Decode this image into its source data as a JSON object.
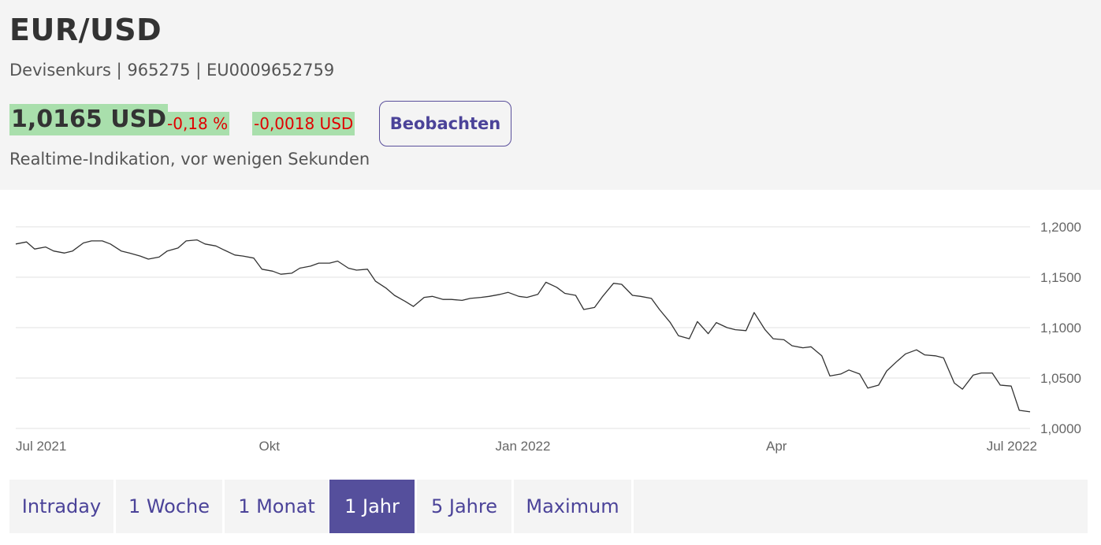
{
  "header": {
    "title": "EUR/USD",
    "subtitle": "Devisenkurs | 965275 | EU0009652759",
    "price": "1,0165 USD",
    "change_pct": "-0,18 %",
    "change_abs": "-0,0018 USD",
    "watch_label": "Beobachten",
    "realtime_text": "Realtime-Indikation, vor wenigen Sekunden"
  },
  "colors": {
    "positive_bg": "#a9dfac",
    "negative_text": "#e00000",
    "accent": "#554f9c",
    "line": "#333333",
    "grid": "#e2e2e2"
  },
  "chart_data": {
    "type": "line",
    "title": "",
    "xlabel": "",
    "ylabel": "",
    "ylim": [
      1.0,
      1.2
    ],
    "grid": true,
    "y_ticks": [
      "1,2000",
      "1,1500",
      "1,1000",
      "1,0500",
      "1,0000"
    ],
    "x_ticks": [
      "Jul 2021",
      "Okt",
      "Jan 2022",
      "Apr",
      "Jul 2022"
    ],
    "series": [
      {
        "x": [
          "2021-07-01",
          "2021-07-05",
          "2021-07-08",
          "2021-07-12",
          "2021-07-15",
          "2021-07-19",
          "2021-07-22",
          "2021-07-26",
          "2021-07-29",
          "2021-08-02",
          "2021-08-05",
          "2021-08-09",
          "2021-08-12",
          "2021-08-16",
          "2021-08-19",
          "2021-08-23",
          "2021-08-26",
          "2021-08-30",
          "2021-09-02",
          "2021-09-06",
          "2021-09-09",
          "2021-09-13",
          "2021-09-16",
          "2021-09-20",
          "2021-09-23",
          "2021-09-27",
          "2021-09-30",
          "2021-10-04",
          "2021-10-07",
          "2021-10-11",
          "2021-10-14",
          "2021-10-18",
          "2021-10-21",
          "2021-10-25",
          "2021-10-28",
          "2021-11-01",
          "2021-11-04",
          "2021-11-08",
          "2021-11-11",
          "2021-11-15",
          "2021-11-18",
          "2021-11-22",
          "2021-11-25",
          "2021-11-29",
          "2021-12-02",
          "2021-12-06",
          "2021-12-09",
          "2021-12-13",
          "2021-12-16",
          "2021-12-20",
          "2021-12-23",
          "2021-12-27",
          "2021-12-30",
          "2022-01-03",
          "2022-01-06",
          "2022-01-10",
          "2022-01-13",
          "2022-01-17",
          "2022-01-20",
          "2022-01-24",
          "2022-01-27",
          "2022-01-31",
          "2022-02-03",
          "2022-02-07",
          "2022-02-10",
          "2022-02-14",
          "2022-02-17",
          "2022-02-21",
          "2022-02-24",
          "2022-02-28",
          "2022-03-03",
          "2022-03-07",
          "2022-03-10",
          "2022-03-14",
          "2022-03-17",
          "2022-03-21",
          "2022-03-24",
          "2022-03-28",
          "2022-03-31",
          "2022-04-04",
          "2022-04-07",
          "2022-04-11",
          "2022-04-14",
          "2022-04-18",
          "2022-04-21",
          "2022-04-25",
          "2022-04-28",
          "2022-05-02",
          "2022-05-05",
          "2022-05-09",
          "2022-05-12",
          "2022-05-16",
          "2022-05-19",
          "2022-05-23",
          "2022-05-26",
          "2022-05-30",
          "2022-06-02",
          "2022-06-06",
          "2022-06-09",
          "2022-06-13",
          "2022-06-16",
          "2022-06-20",
          "2022-06-23",
          "2022-06-27",
          "2022-06-30",
          "2022-07-04",
          "2022-07-07",
          "2022-07-11"
        ],
        "y": [
          1.183,
          1.185,
          1.178,
          1.18,
          1.176,
          1.174,
          1.176,
          1.184,
          1.186,
          1.186,
          1.183,
          1.176,
          1.174,
          1.171,
          1.168,
          1.17,
          1.176,
          1.179,
          1.186,
          1.187,
          1.183,
          1.181,
          1.177,
          1.172,
          1.171,
          1.169,
          1.158,
          1.156,
          1.153,
          1.154,
          1.159,
          1.161,
          1.164,
          1.164,
          1.166,
          1.159,
          1.157,
          1.158,
          1.146,
          1.139,
          1.132,
          1.126,
          1.121,
          1.13,
          1.131,
          1.128,
          1.128,
          1.127,
          1.129,
          1.13,
          1.131,
          1.133,
          1.135,
          1.131,
          1.13,
          1.133,
          1.145,
          1.14,
          1.134,
          1.132,
          1.118,
          1.12,
          1.131,
          1.144,
          1.143,
          1.132,
          1.131,
          1.129,
          1.118,
          1.105,
          1.092,
          1.089,
          1.106,
          1.094,
          1.105,
          1.1,
          1.098,
          1.097,
          1.115,
          1.098,
          1.089,
          1.088,
          1.082,
          1.08,
          1.081,
          1.072,
          1.052,
          1.054,
          1.058,
          1.054,
          1.04,
          1.043,
          1.057,
          1.067,
          1.074,
          1.078,
          1.073,
          1.072,
          1.07,
          1.045,
          1.039,
          1.053,
          1.055,
          1.055,
          1.043,
          1.042,
          1.018,
          1.0165
        ]
      }
    ]
  },
  "tabs": [
    {
      "label": "Intraday",
      "active": false
    },
    {
      "label": "1 Woche",
      "active": false
    },
    {
      "label": "1 Monat",
      "active": false
    },
    {
      "label": "1 Jahr",
      "active": true
    },
    {
      "label": "5 Jahre",
      "active": false
    },
    {
      "label": "Maximum",
      "active": false
    }
  ]
}
